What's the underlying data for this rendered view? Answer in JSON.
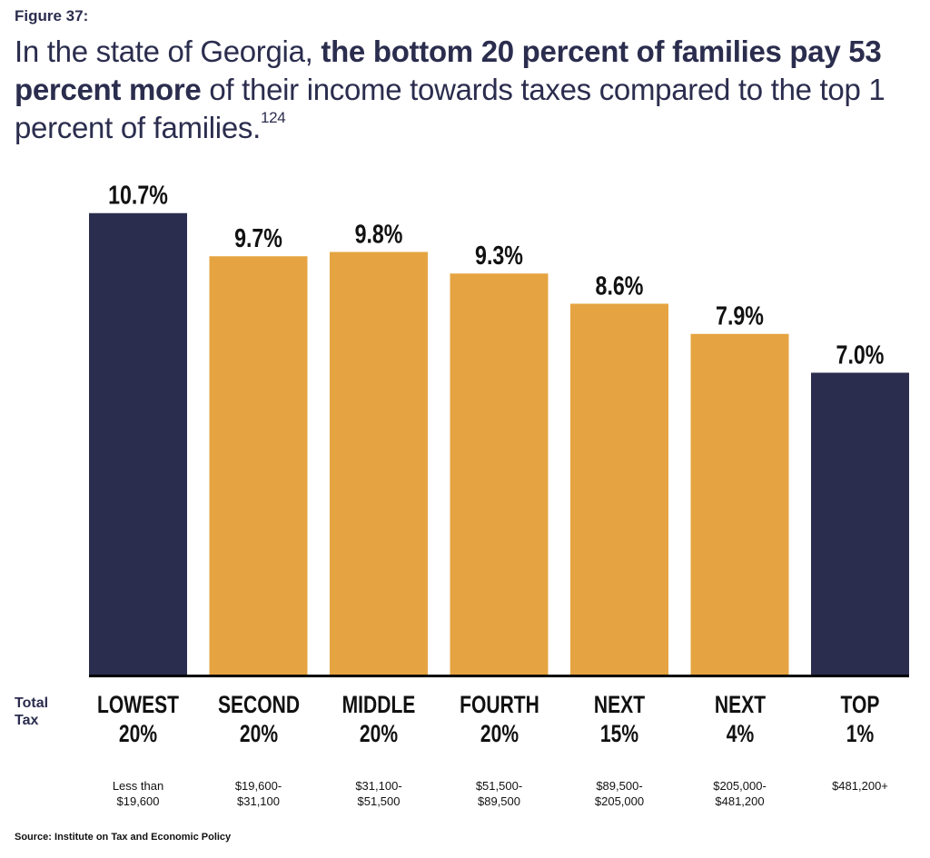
{
  "figure_label": "Figure 37:",
  "headline": {
    "part1": "In the state of Georgia, ",
    "bold1": "the bottom 20 percent of families pay 53 percent more",
    "part2": " of their income towards taxes compared to the top 1 percent of families.",
    "footnote": "124"
  },
  "row_label": "Total Tax",
  "source": "Source: Institute on Tax and Economic Policy",
  "colors": {
    "highlight": "#2b2d4e",
    "default": "#e5a441",
    "axis": "#000000"
  },
  "chart_data": {
    "type": "bar",
    "title": "In the state of Georgia, the bottom 20 percent of families pay 53 percent more of their income towards taxes compared to the top 1 percent of families.",
    "xlabel": "",
    "ylabel": "Total Tax",
    "ylim": [
      0,
      11
    ],
    "grid": false,
    "legend": "none",
    "categories": [
      "LOWEST 20%",
      "SECOND 20%",
      "MIDDLE 20%",
      "FOURTH 20%",
      "NEXT 15%",
      "NEXT 4%",
      "TOP 1%"
    ],
    "category_lines": [
      [
        "LOWEST",
        "20%"
      ],
      [
        "SECOND",
        "20%"
      ],
      [
        "MIDDLE",
        "20%"
      ],
      [
        "FOURTH",
        "20%"
      ],
      [
        "NEXT",
        "15%"
      ],
      [
        "NEXT",
        "4%"
      ],
      [
        "TOP",
        "1%"
      ]
    ],
    "income_ranges": [
      [
        "Less than",
        "$19,600"
      ],
      [
        "$19,600-",
        "$31,100"
      ],
      [
        "$31,100-",
        "$51,500"
      ],
      [
        "$51,500-",
        "$89,500"
      ],
      [
        "$89,500-",
        "$205,000"
      ],
      [
        "$205,000-",
        "$481,200"
      ],
      [
        "$481,200+",
        ""
      ]
    ],
    "values": [
      10.7,
      9.7,
      9.8,
      9.3,
      8.6,
      7.9,
      7.0
    ],
    "value_labels": [
      "10.7%",
      "9.7%",
      "9.8%",
      "9.3%",
      "8.6%",
      "7.9%",
      "7.0%"
    ],
    "highlighted": [
      true,
      false,
      false,
      false,
      false,
      false,
      true
    ]
  }
}
